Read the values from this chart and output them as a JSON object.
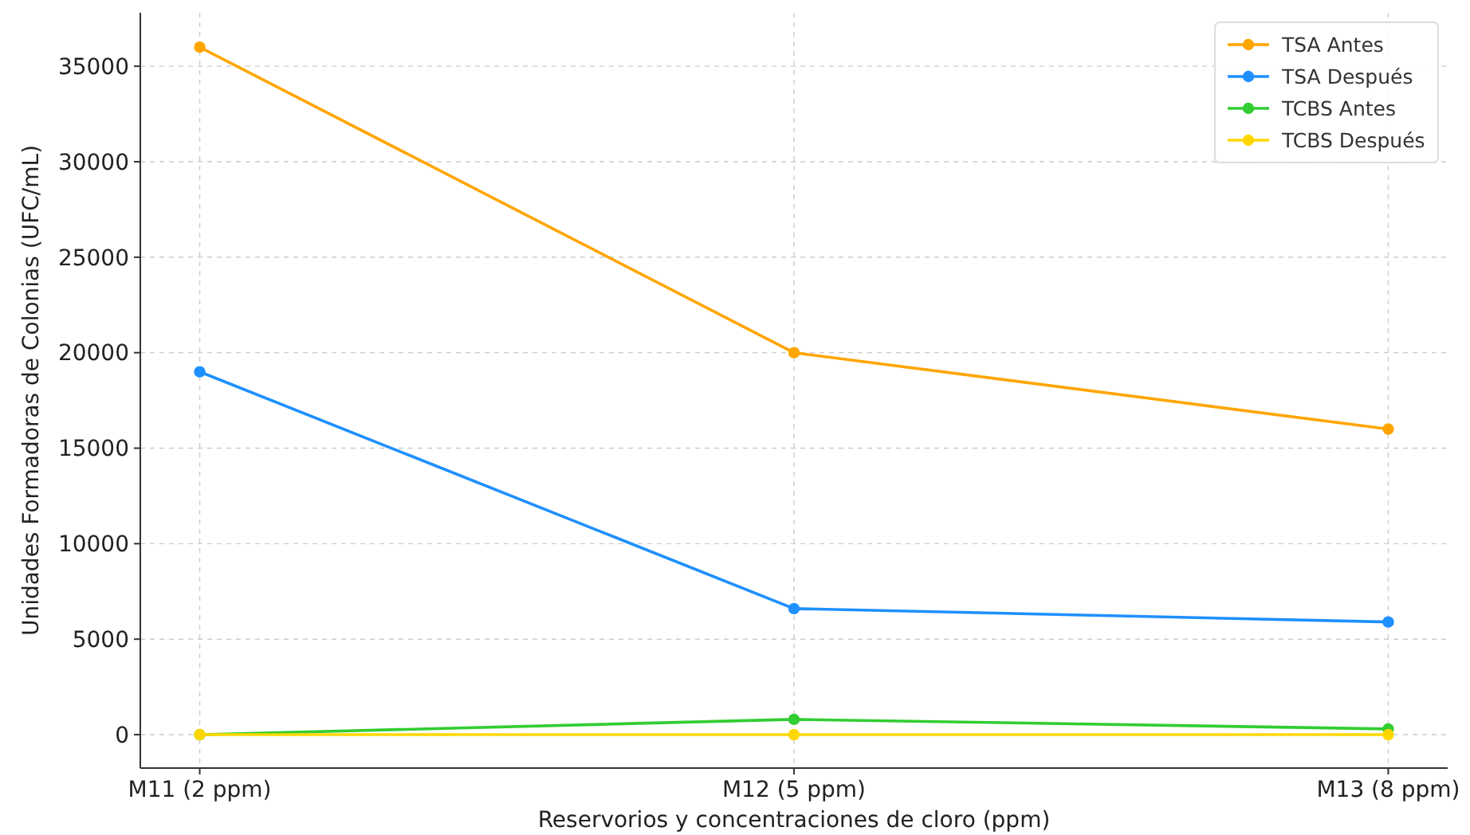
{
  "chart_data": {
    "type": "line",
    "xlabel": "Reservorios y concentraciones de cloro (ppm)",
    "ylabel": "Unidades Formadoras de Colonias (UFC/mL)",
    "categories": [
      "M11 (2 ppm)",
      "M12 (5 ppm)",
      "M13 (8 ppm)"
    ],
    "series": [
      {
        "name": "TSA Antes",
        "color": "#ffa500",
        "values": [
          36000,
          20000,
          16000
        ]
      },
      {
        "name": "TSA Después",
        "color": "#1e90ff",
        "values": [
          19000,
          6600,
          5900
        ]
      },
      {
        "name": "TCBS Antes",
        "color": "#32cd32",
        "values": [
          0,
          800,
          300
        ]
      },
      {
        "name": "TCBS Después",
        "color": "#ffd700",
        "values": [
          0,
          0,
          0
        ]
      }
    ],
    "ylim": [
      -1750,
      37800
    ],
    "yticks": [
      0,
      5000,
      10000,
      15000,
      20000,
      25000,
      30000,
      35000
    ],
    "grid": true,
    "legend": "top right",
    "marker": "circle",
    "line_style": "solid"
  }
}
